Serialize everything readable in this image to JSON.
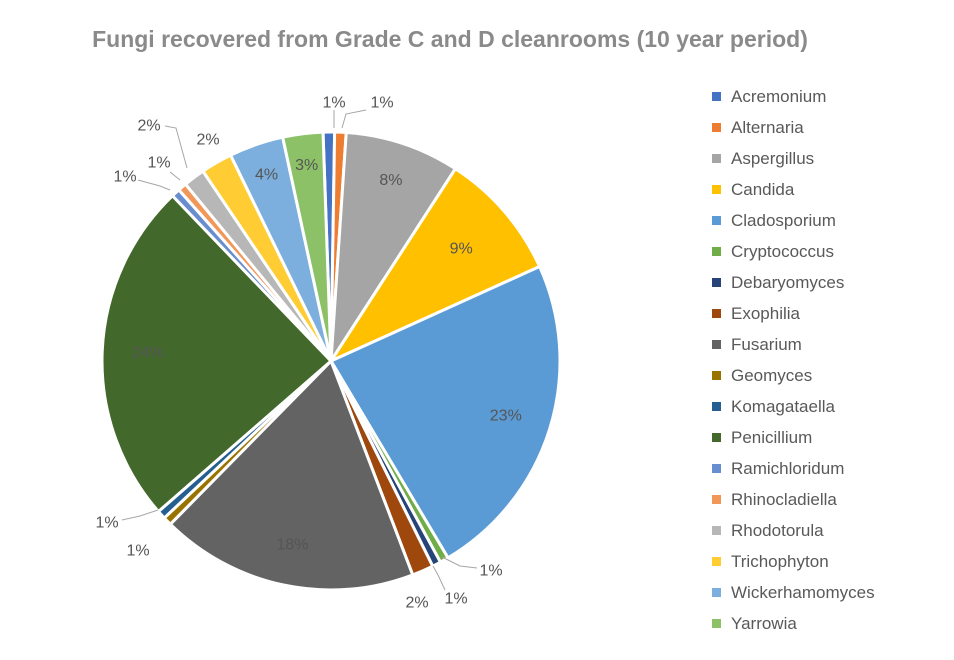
{
  "chart_data": {
    "type": "pie",
    "title": "Fungi recovered from Grade C and D cleanrooms (10 year period)",
    "legend_position": "right",
    "start_angle_deg": -2,
    "slices": [
      {
        "name": "Acremonium",
        "value": 0.8,
        "label": "1%",
        "color": "#4472C4"
      },
      {
        "name": "Alternaria",
        "value": 0.8,
        "label": "1%",
        "color": "#ED7D31"
      },
      {
        "name": "Aspergillus",
        "value": 8,
        "label": "8%",
        "color": "#A5A5A5"
      },
      {
        "name": "Candida",
        "value": 9,
        "label": "9%",
        "color": "#FFC000"
      },
      {
        "name": "Cladosporium",
        "value": 23,
        "label": "23%",
        "color": "#5B9BD5"
      },
      {
        "name": "Cryptococcus",
        "value": 0.6,
        "label": "1%",
        "color": "#70AD47"
      },
      {
        "name": "Debaryomyces",
        "value": 0.6,
        "label": "1%",
        "color": "#264478"
      },
      {
        "name": "Exophilia",
        "value": 1.5,
        "label": "2%",
        "color": "#9E480E"
      },
      {
        "name": "Fusarium",
        "value": 18,
        "label": "18%",
        "color": "#636363"
      },
      {
        "name": "Geomyces",
        "value": 0.6,
        "label": "1%",
        "color": "#997300"
      },
      {
        "name": "Komagataella",
        "value": 0.6,
        "label": "1%",
        "color": "#255E91"
      },
      {
        "name": "Penicillium",
        "value": 24,
        "label": "24%",
        "color": "#43682B"
      },
      {
        "name": "Ramichloridum",
        "value": 0.6,
        "label": "1%",
        "color": "#698ED0"
      },
      {
        "name": "Rhinocladiella",
        "value": 0.6,
        "label": "1%",
        "color": "#F1975A"
      },
      {
        "name": "Rhodotorula",
        "value": 1.5,
        "label": "2%",
        "color": "#B7B7B7"
      },
      {
        "name": "Trichophyton",
        "value": 2.2,
        "label": "2%",
        "color": "#FFCD33"
      },
      {
        "name": "Wickerhamomyces",
        "value": 3.8,
        "label": "4%",
        "color": "#7CAFDD"
      },
      {
        "name": "Yarrowia",
        "value": 2.8,
        "label": "3%",
        "color": "#8CC168"
      }
    ]
  }
}
